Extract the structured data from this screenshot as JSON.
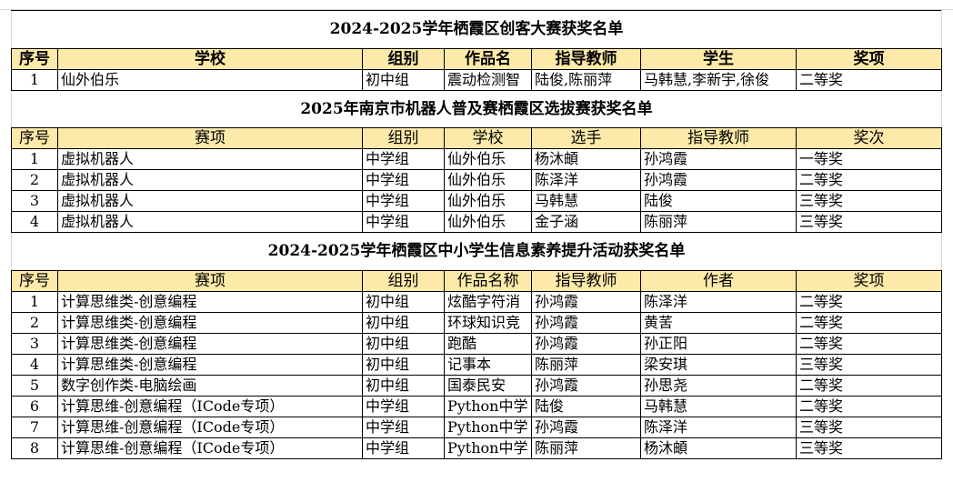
{
  "table1": {
    "title": "2024-2025学年栖霞区创客大赛获奖名单",
    "headers": [
      "序号",
      "学校",
      "组别",
      "作品名",
      "指导教师",
      "学生",
      "奖项"
    ],
    "rows": [
      [
        "1",
        "仙外伯乐",
        "初中组",
        "震动检测智",
        "陆俊,陈丽萍",
        "马韩慧,李新宇,徐俊",
        "二等奖"
      ]
    ]
  },
  "table2": {
    "title": "2025年南京市机器人普及赛栖霞区选拔赛获奖名单",
    "headers": [
      "序号",
      "赛项",
      "组别",
      "学校",
      "选手",
      "指导教师",
      "奖次"
    ],
    "rows": [
      [
        "1",
        "虚拟机器人",
        "中学组",
        "仙外伯乐",
        "杨沐頔",
        "孙鸿霞",
        "一等奖"
      ],
      [
        "2",
        "虚拟机器人",
        "中学组",
        "仙外伯乐",
        "陈泽洋",
        "孙鸿霞",
        "二等奖"
      ],
      [
        "3",
        "虚拟机器人",
        "中学组",
        "仙外伯乐",
        "马韩慧",
        "陆俊",
        "三等奖"
      ],
      [
        "4",
        "虚拟机器人",
        "中学组",
        "仙外伯乐",
        "金子涵",
        "陈丽萍",
        "三等奖"
      ]
    ]
  },
  "table3": {
    "title": "2024-2025学年栖霞区中小学生信息素养提升活动获奖名单",
    "headers": [
      "序号",
      "赛项",
      "组别",
      "作品名称",
      "指导教师",
      "作者",
      "奖项"
    ],
    "rows": [
      [
        "1",
        "计算思维类-创意编程",
        "初中组",
        "炫酷字符消",
        "孙鸿霞",
        "陈泽洋",
        "二等奖"
      ],
      [
        "2",
        "计算思维类-创意编程",
        "初中组",
        "环球知识竞",
        "孙鸿霞",
        "黄䒷",
        "二等奖"
      ],
      [
        "3",
        "计算思维类-创意编程",
        "初中组",
        "跑酷",
        "孙鸿霞",
        "孙正阳",
        "二等奖"
      ],
      [
        "4",
        "计算思维类-创意编程",
        "初中组",
        "记事本",
        "陈丽萍",
        "梁安琪",
        "三等奖"
      ],
      [
        "5",
        "数字创作类-电脑绘画",
        "初中组",
        "国泰民安",
        "孙鸿霞",
        "孙思尧",
        "二等奖"
      ],
      [
        "6",
        "计算思维-创意编程（ICode专项）",
        "中学组",
        "Python中学",
        "陆俊",
        "马韩慧",
        "二等奖"
      ],
      [
        "7",
        "计算思维-创意编程（ICode专项）",
        "中学组",
        "Python中学",
        "孙鸿霞",
        "陈泽洋",
        "三等奖"
      ],
      [
        "8",
        "计算思维-创意编程（ICode专项）",
        "中学组",
        "Python中学",
        "陈丽萍",
        "杨沐頔",
        "三等奖"
      ]
    ]
  }
}
